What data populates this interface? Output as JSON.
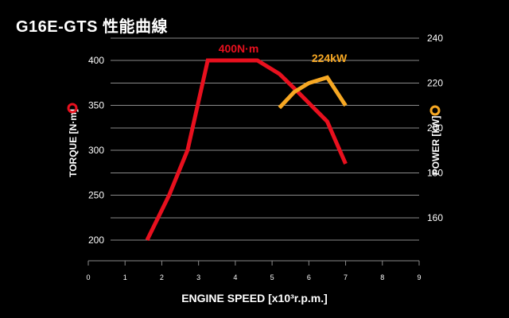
{
  "page": {
    "title": "G16E-GTS 性能曲線"
  },
  "colors": {
    "background": "#000000",
    "torque": "#e8101e",
    "power": "#f7a823",
    "grid": "#8a8a8a",
    "text": "#ffffff"
  },
  "chart_data": {
    "type": "line",
    "title": "G16E-GTS 性能曲線",
    "xlabel": "ENGINE SPEED [x10³r.p.m.]",
    "x_ticks": [
      "0",
      "1",
      "2",
      "3",
      "4",
      "5",
      "6",
      "7",
      "8",
      "9"
    ],
    "xlim": [
      0,
      9
    ],
    "y_left": {
      "label": "TORQUE [N·m]",
      "ticks": [
        "200",
        "250",
        "300",
        "350",
        "400"
      ],
      "range": [
        200,
        400
      ]
    },
    "y_right": {
      "label": "POWER [kW]",
      "ticks": [
        "160",
        "180",
        "200",
        "220",
        "240"
      ],
      "range": [
        160,
        240
      ]
    },
    "grid": true,
    "series": [
      {
        "name": "TORQUE [N·m]",
        "axis": "left",
        "annotation": "400N·m",
        "points": [
          [
            1.6,
            200
          ],
          [
            2.2,
            250
          ],
          [
            2.7,
            300
          ],
          [
            3.25,
            400
          ],
          [
            4.6,
            400
          ],
          [
            5.2,
            385
          ],
          [
            5.7,
            365
          ],
          [
            6.5,
            332
          ],
          [
            7.0,
            285
          ]
        ]
      },
      {
        "name": "POWER [kW]",
        "axis": "right",
        "annotation": "224kW",
        "points": [
          [
            5.2,
            209
          ],
          [
            5.6,
            216
          ],
          [
            6.0,
            220
          ],
          [
            6.5,
            222.5
          ],
          [
            7.0,
            210
          ]
        ]
      }
    ]
  }
}
